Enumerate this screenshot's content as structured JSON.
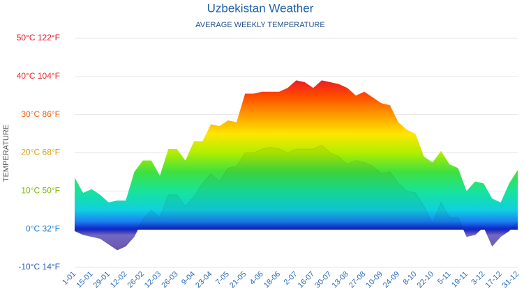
{
  "chart_data": {
    "type": "area",
    "title": "Uzbekistan Weather",
    "subtitle": "AVERAGE WEEKLY TEMPERATURE",
    "y_label": "TEMPERATURE",
    "categories": [
      "1-01",
      null,
      "15-01",
      null,
      "29-01",
      null,
      "12-02",
      null,
      "26-02",
      null,
      "12-03",
      null,
      "26-03",
      null,
      "9-04",
      null,
      "23-04",
      null,
      "7-05",
      null,
      "21-05",
      null,
      "4-06",
      null,
      "18-06",
      null,
      "2-07",
      null,
      "16-07",
      null,
      "30-07",
      null,
      "13-08",
      null,
      "27-08",
      null,
      "10-09",
      null,
      "24-09",
      null,
      "8-10",
      null,
      "22-10",
      null,
      "5-11",
      null,
      "19-11",
      null,
      "3-12",
      null,
      "17-12",
      null,
      "31-12"
    ],
    "series": [
      {
        "values": [
          13.5,
          9.5,
          10.5,
          9,
          7,
          7.5,
          7.5,
          15,
          18,
          18,
          14,
          21,
          21,
          18,
          23,
          23,
          27.5,
          27,
          28.5,
          28,
          35.5,
          35.5,
          36,
          36,
          36,
          37,
          39,
          38.5,
          37,
          39,
          38.5,
          38,
          37,
          35,
          36,
          34.5,
          33,
          32.5,
          28,
          26,
          25,
          19,
          17.5,
          20.5,
          17,
          16,
          10,
          12.5,
          12,
          8,
          7,
          12,
          15.5
        ]
      },
      {
        "values": [
          -0.5,
          -1.5,
          -2,
          -2.5,
          -4,
          -5.5,
          -4.5,
          -2,
          2.5,
          5,
          3,
          9,
          9,
          6,
          8.5,
          12,
          14.5,
          12.5,
          16,
          16.5,
          20,
          20,
          21,
          21.5,
          21,
          20,
          21,
          21,
          21,
          22,
          20,
          19,
          17,
          18,
          17.5,
          16.5,
          14.5,
          15,
          12,
          10,
          9.5,
          6,
          1.5,
          7,
          3,
          3,
          -2,
          -1.5,
          0.5,
          -4.5,
          -2,
          -0.5,
          2
        ]
      }
    ],
    "ylim": [
      -10,
      50
    ],
    "yticks": [
      {
        "value": -10,
        "label": "-10°C 14°F"
      },
      {
        "value": 0,
        "label": "0°C 32°F"
      },
      {
        "value": 10,
        "label": "10°C 50°F"
      },
      {
        "value": 20,
        "label": "20°C 68°F"
      },
      {
        "value": 30,
        "label": "30°C 86°F"
      },
      {
        "value": 40,
        "label": "40°C 104°F"
      },
      {
        "value": 50,
        "label": "50°C 122°F"
      }
    ],
    "ytick_colors": [
      "#2a5fc0",
      "#1a7ad8",
      "#7cb800",
      "#e0a000",
      "#f06010",
      "#e82a2a",
      "#e8102a"
    ],
    "grid": true
  }
}
